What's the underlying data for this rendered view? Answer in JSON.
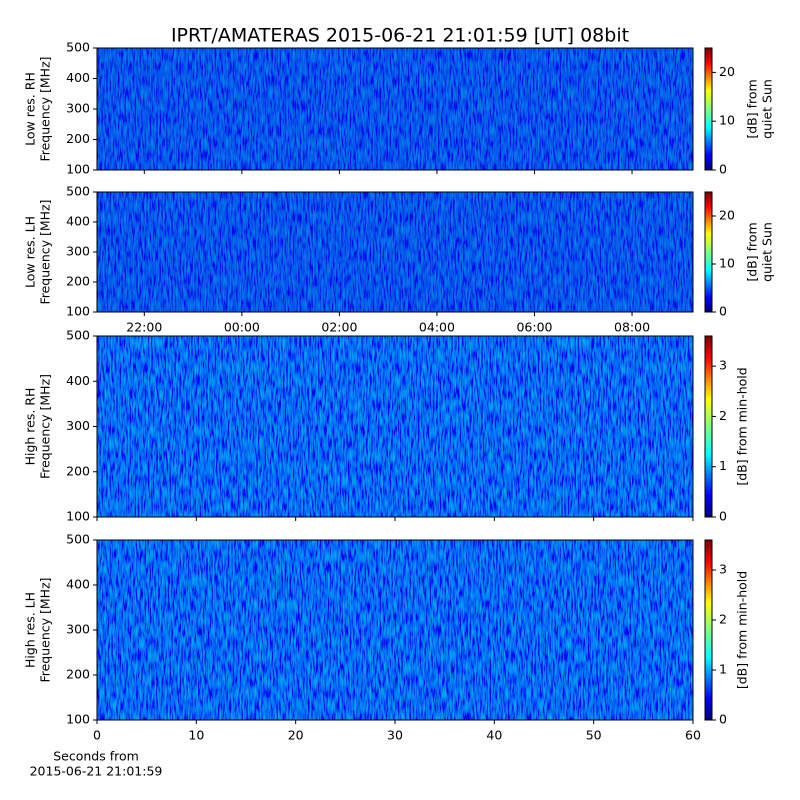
{
  "title": "IPRT/AMATERAS 2015-06-21 21:01:59 [UT]   08bit",
  "chart_data": [
    {
      "type": "spectrogram",
      "ylabel": "Low res. RH\nFrequency [MHz]",
      "ylim": [
        100,
        500
      ],
      "yticks": [
        100,
        200,
        300,
        400,
        500
      ],
      "xlim": [
        21.03,
        33.25
      ],
      "colorbar_label": "[dB] from\nquiet Sun",
      "clim": [
        0,
        25
      ],
      "cticks": [
        0,
        10,
        20
      ]
    },
    {
      "type": "spectrogram",
      "ylabel": "Low res. LH\nFrequency [MHz]",
      "ylim": [
        100,
        500
      ],
      "yticks": [
        100,
        200,
        300,
        400,
        500
      ],
      "xlim": [
        21.03,
        33.25
      ],
      "xticks": [
        {
          "value": 22,
          "label": "22:00"
        },
        {
          "value": 24,
          "label": "00:00"
        },
        {
          "value": 26,
          "label": "02:00"
        },
        {
          "value": 28,
          "label": "04:00"
        },
        {
          "value": 30,
          "label": "06:00"
        },
        {
          "value": 32,
          "label": "08:00"
        }
      ],
      "colorbar_label": "[dB] from\nquiet Sun",
      "clim": [
        0,
        25
      ],
      "cticks": [
        0,
        10,
        20
      ]
    },
    {
      "type": "spectrogram",
      "ylabel": "High res. RH\nFrequency [MHz]",
      "ylim": [
        100,
        500
      ],
      "yticks": [
        100,
        200,
        300,
        400,
        500
      ],
      "xlim": [
        0,
        60
      ],
      "colorbar_label": "[dB] from min-hold",
      "clim": [
        0,
        3.6
      ],
      "cticks": [
        0,
        1,
        2,
        3
      ]
    },
    {
      "type": "spectrogram",
      "ylabel": "High res. LH\nFrequency [MHz]",
      "ylim": [
        100,
        500
      ],
      "yticks": [
        100,
        200,
        300,
        400,
        500
      ],
      "xlim": [
        0,
        60
      ],
      "xticks": [
        0,
        10,
        20,
        30,
        40,
        50,
        60
      ],
      "xlabel": "Seconds from\n2015-06-21 21:01:59",
      "colorbar_label": "[dB] from min-hold",
      "clim": [
        0,
        3.6
      ],
      "cticks": [
        0,
        1,
        2,
        3
      ]
    }
  ]
}
